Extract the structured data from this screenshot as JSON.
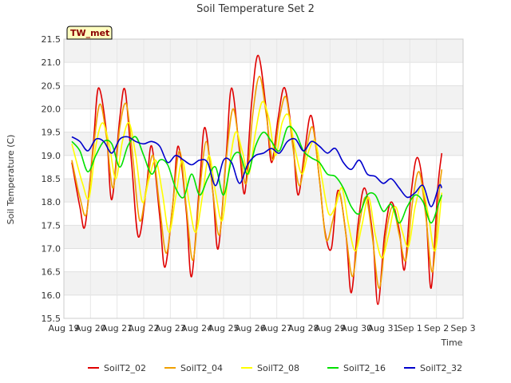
{
  "chart_data": {
    "type": "line",
    "title": "Soil Temperature Set 2",
    "xlabel": "Time",
    "ylabel": "Soil Temperature (C)",
    "badge": "TW_met",
    "ylim": [
      15.5,
      21.5
    ],
    "yticks": [
      "15.5",
      "16.0",
      "16.5",
      "17.0",
      "17.5",
      "18.0",
      "18.5",
      "19.0",
      "19.5",
      "20.0",
      "20.5",
      "21.0",
      "21.5"
    ],
    "xlim": [
      0,
      15
    ],
    "xticks": [
      "Aug 19",
      "Aug 20",
      "Aug 21",
      "Aug 22",
      "Aug 23",
      "Aug 24",
      "Aug 25",
      "Aug 26",
      "Aug 27",
      "Aug 28",
      "Aug 29",
      "Aug 30",
      "Aug 31",
      "Sep 1",
      "Sep 2",
      "Sep 3"
    ],
    "grid": true,
    "legend_position": "bottom",
    "series": [
      {
        "name": "SoilT2_02",
        "color": "#e00000",
        "x": [
          0.3,
          0.6,
          0.8,
          1.1,
          1.3,
          1.6,
          1.8,
          2.1,
          2.3,
          2.55,
          2.8,
          3.1,
          3.3,
          3.6,
          3.8,
          4.1,
          4.3,
          4.6,
          4.8,
          5.1,
          5.3,
          5.6,
          5.8,
          6.1,
          6.3,
          6.6,
          6.8,
          7.05,
          7.3,
          7.6,
          7.8,
          8.05,
          8.3,
          8.6,
          8.8,
          9.05,
          9.3,
          9.6,
          9.8,
          10.05,
          10.3,
          10.6,
          10.8,
          11.05,
          11.3,
          11.6,
          11.8,
          12.05,
          12.3,
          12.6,
          12.8,
          13.05,
          13.3,
          13.6,
          13.8,
          14.05,
          14.2
        ],
        "y": [
          18.85,
          17.9,
          17.5,
          19.2,
          20.45,
          19.5,
          18.05,
          19.8,
          20.4,
          18.8,
          17.25,
          18.3,
          19.2,
          17.7,
          16.6,
          18.0,
          19.2,
          17.8,
          16.4,
          18.4,
          19.6,
          18.2,
          17.0,
          19.0,
          20.45,
          19.1,
          18.2,
          20.1,
          21.15,
          20.0,
          18.85,
          19.8,
          20.45,
          19.3,
          18.15,
          19.1,
          19.85,
          18.5,
          17.4,
          17.0,
          18.25,
          17.3,
          16.05,
          17.5,
          18.3,
          17.3,
          15.8,
          17.3,
          18.0,
          17.4,
          16.55,
          18.2,
          18.95,
          17.8,
          16.15,
          18.3,
          19.05
        ]
      },
      {
        "name": "SoilT2_04",
        "color": "#f0a000",
        "x": [
          0.3,
          0.6,
          0.85,
          1.1,
          1.35,
          1.6,
          1.85,
          2.1,
          2.35,
          2.6,
          2.85,
          3.1,
          3.35,
          3.6,
          3.85,
          4.1,
          4.35,
          4.6,
          4.85,
          5.1,
          5.35,
          5.6,
          5.85,
          6.1,
          6.35,
          6.6,
          6.85,
          7.1,
          7.35,
          7.6,
          7.85,
          8.1,
          8.35,
          8.6,
          8.85,
          9.1,
          9.35,
          9.6,
          9.85,
          10.1,
          10.35,
          10.6,
          10.85,
          11.1,
          11.35,
          11.6,
          11.85,
          12.1,
          12.35,
          12.6,
          12.85,
          13.1,
          13.35,
          13.6,
          13.85,
          14.1,
          14.2
        ],
        "y": [
          18.9,
          18.1,
          17.75,
          19.1,
          20.1,
          19.4,
          18.3,
          19.6,
          20.1,
          18.9,
          17.6,
          18.3,
          19.0,
          17.9,
          16.9,
          18.0,
          19.1,
          17.9,
          16.75,
          18.2,
          19.3,
          18.2,
          17.3,
          18.9,
          20.0,
          19.2,
          18.4,
          19.9,
          20.7,
          19.9,
          18.9,
          19.8,
          20.25,
          19.2,
          18.35,
          19.1,
          19.6,
          18.5,
          17.2,
          17.6,
          18.2,
          17.3,
          16.4,
          17.5,
          18.1,
          17.2,
          16.15,
          17.3,
          17.9,
          17.3,
          16.75,
          18.0,
          18.65,
          17.7,
          16.5,
          18.2,
          18.7
        ]
      },
      {
        "name": "SoilT2_08",
        "color": "#ffff00",
        "x": [
          0.3,
          0.7,
          0.95,
          1.2,
          1.45,
          1.7,
          1.95,
          2.2,
          2.45,
          2.7,
          2.95,
          3.2,
          3.45,
          3.7,
          3.95,
          4.2,
          4.45,
          4.7,
          4.95,
          5.2,
          5.45,
          5.7,
          5.95,
          6.2,
          6.45,
          6.7,
          6.95,
          7.2,
          7.45,
          7.7,
          7.95,
          8.2,
          8.45,
          8.7,
          8.95,
          9.2,
          9.45,
          9.7,
          9.95,
          10.2,
          10.45,
          10.7,
          10.95,
          11.2,
          11.45,
          11.7,
          11.95,
          12.2,
          12.45,
          12.7,
          12.95,
          13.2,
          13.45,
          13.7,
          13.95,
          14.2
        ],
        "y": [
          19.25,
          18.4,
          18.1,
          19.2,
          19.7,
          19.25,
          18.5,
          19.3,
          19.7,
          19.0,
          18.0,
          18.5,
          18.9,
          18.2,
          17.35,
          18.1,
          18.9,
          18.0,
          17.35,
          18.1,
          19.0,
          18.2,
          17.6,
          18.7,
          19.5,
          19.1,
          18.6,
          19.5,
          20.15,
          19.8,
          19.0,
          19.7,
          19.85,
          19.1,
          18.6,
          19.1,
          19.3,
          18.5,
          17.75,
          17.9,
          18.3,
          17.5,
          16.95,
          17.5,
          18.1,
          17.3,
          16.8,
          17.3,
          17.9,
          17.4,
          17.05,
          17.9,
          18.35,
          17.7,
          16.95,
          18.2
        ]
      },
      {
        "name": "SoilT2_16",
        "color": "#00e000",
        "x": [
          0.3,
          0.6,
          0.9,
          1.2,
          1.5,
          1.8,
          2.1,
          2.4,
          2.7,
          3.0,
          3.3,
          3.6,
          3.9,
          4.2,
          4.5,
          4.8,
          5.1,
          5.4,
          5.7,
          6.0,
          6.3,
          6.6,
          6.9,
          7.2,
          7.5,
          7.8,
          8.1,
          8.4,
          8.7,
          9.0,
          9.3,
          9.6,
          9.9,
          10.2,
          10.5,
          10.8,
          11.1,
          11.4,
          11.7,
          12.0,
          12.3,
          12.6,
          12.9,
          13.2,
          13.5,
          13.8,
          14.1,
          14.2
        ],
        "y": [
          19.3,
          19.1,
          18.65,
          19.0,
          19.3,
          19.25,
          18.75,
          19.2,
          19.4,
          19.0,
          18.6,
          18.9,
          18.8,
          18.3,
          18.1,
          18.6,
          18.15,
          18.5,
          18.75,
          18.15,
          18.9,
          19.05,
          18.6,
          19.2,
          19.5,
          19.3,
          19.1,
          19.6,
          19.5,
          19.1,
          18.95,
          18.85,
          18.6,
          18.55,
          18.3,
          17.9,
          17.75,
          18.15,
          18.15,
          17.8,
          17.95,
          17.55,
          17.9,
          18.15,
          18.0,
          17.55,
          18.0,
          18.15
        ]
      },
      {
        "name": "SoilT2_32",
        "color": "#0000cc",
        "x": [
          0.3,
          0.6,
          0.9,
          1.2,
          1.5,
          1.8,
          2.1,
          2.4,
          2.7,
          3.0,
          3.3,
          3.6,
          3.9,
          4.2,
          4.5,
          4.8,
          5.1,
          5.4,
          5.7,
          6.0,
          6.3,
          6.6,
          6.9,
          7.2,
          7.5,
          7.8,
          8.1,
          8.4,
          8.7,
          9.0,
          9.3,
          9.6,
          9.9,
          10.2,
          10.5,
          10.8,
          11.1,
          11.4,
          11.7,
          12.0,
          12.3,
          12.6,
          12.9,
          13.2,
          13.5,
          13.8,
          14.1,
          14.2
        ],
        "y": [
          19.4,
          19.3,
          19.1,
          19.35,
          19.3,
          19.05,
          19.35,
          19.4,
          19.3,
          19.25,
          19.3,
          19.2,
          18.85,
          19.0,
          18.9,
          18.8,
          18.9,
          18.85,
          18.35,
          18.9,
          18.85,
          18.4,
          18.8,
          19.0,
          19.05,
          19.15,
          19.05,
          19.3,
          19.35,
          19.1,
          19.3,
          19.2,
          19.05,
          19.15,
          18.85,
          18.7,
          18.9,
          18.6,
          18.55,
          18.4,
          18.5,
          18.3,
          18.1,
          18.2,
          18.35,
          17.9,
          18.35,
          18.3
        ]
      }
    ]
  }
}
